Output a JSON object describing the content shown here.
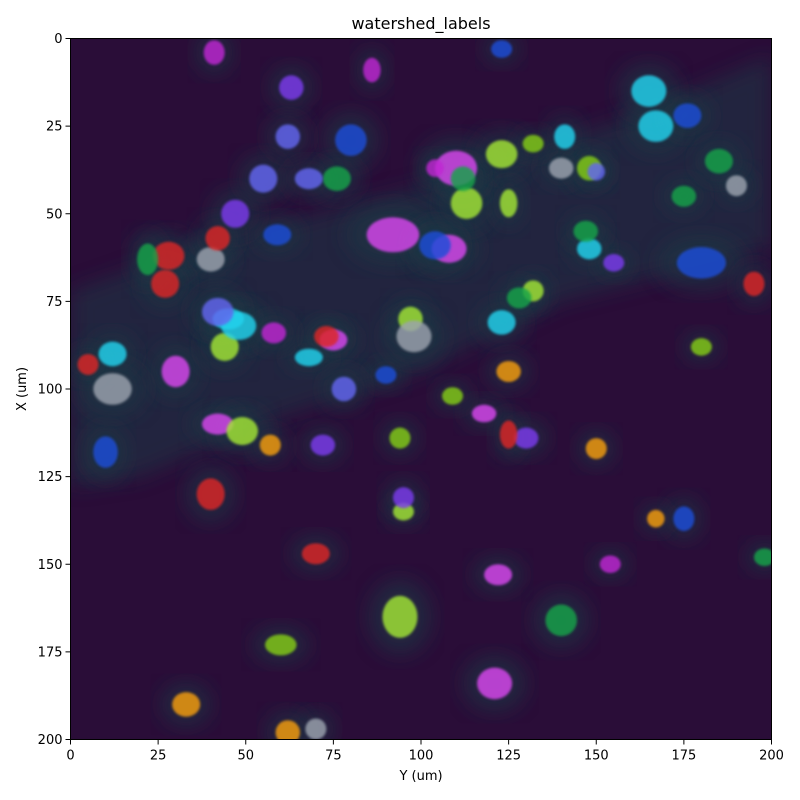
{
  "figure": {
    "title": "watershed_labels",
    "xlabel": "Y (um)",
    "ylabel": "X (um)"
  },
  "axes": {
    "x": {
      "range": [
        0,
        200
      ],
      "ticks": [
        0,
        25,
        50,
        75,
        100,
        125,
        150,
        175,
        200
      ]
    },
    "y": {
      "range": [
        0,
        200
      ],
      "ticks": [
        0,
        25,
        50,
        75,
        100,
        125,
        150,
        175,
        200
      ],
      "inverted": true
    }
  },
  "colors": {
    "background": "#2a0d38",
    "tissue_haze": "#1c3944",
    "label_palette": [
      "#d946ef",
      "#a3e635",
      "#22d3ee",
      "#1d4ed8",
      "#9ca3af",
      "#7c3aed",
      "#dc2626",
      "#16a34a",
      "#84cc16",
      "#f59e0b",
      "#6366f1",
      "#c026d3"
    ]
  },
  "cells": [
    {
      "y": 92,
      "x": 56,
      "w": 15,
      "h": 10,
      "c": 0
    },
    {
      "y": 118,
      "x": 107,
      "w": 7,
      "h": 5,
      "c": 0
    },
    {
      "y": 122,
      "x": 153,
      "w": 8,
      "h": 6,
      "c": 0
    },
    {
      "y": 30,
      "x": 95,
      "w": 8,
      "h": 9,
      "c": 0
    },
    {
      "y": 42,
      "x": 110,
      "w": 9,
      "h": 6,
      "c": 0
    },
    {
      "y": 110,
      "x": 37,
      "w": 12,
      "h": 10,
      "c": 0
    },
    {
      "y": 121,
      "x": 184,
      "w": 10,
      "h": 9,
      "c": 0
    },
    {
      "y": 108,
      "x": 60,
      "w": 10,
      "h": 8,
      "c": 0
    },
    {
      "y": 75,
      "x": 86,
      "w": 8,
      "h": 6,
      "c": 0
    },
    {
      "y": 94,
      "x": 165,
      "w": 10,
      "h": 12,
      "c": 1
    },
    {
      "y": 123,
      "x": 33,
      "w": 9,
      "h": 8,
      "c": 1
    },
    {
      "y": 113,
      "x": 47,
      "w": 9,
      "h": 9,
      "c": 1
    },
    {
      "y": 132,
      "x": 72,
      "w": 6,
      "h": 6,
      "c": 1
    },
    {
      "y": 49,
      "x": 112,
      "w": 9,
      "h": 8,
      "c": 1
    },
    {
      "y": 97,
      "x": 80,
      "w": 7,
      "h": 7,
      "c": 1
    },
    {
      "y": 95,
      "x": 135,
      "w": 6,
      "h": 5,
      "c": 1
    },
    {
      "y": 44,
      "x": 88,
      "w": 8,
      "h": 8,
      "c": 1
    },
    {
      "y": 125,
      "x": 47,
      "w": 5,
      "h": 8,
      "c": 1
    },
    {
      "y": 167,
      "x": 25,
      "w": 10,
      "h": 9,
      "c": 2
    },
    {
      "y": 68,
      "x": 91,
      "w": 8,
      "h": 5,
      "c": 2
    },
    {
      "y": 45,
      "x": 80,
      "w": 9,
      "h": 6,
      "c": 2
    },
    {
      "y": 12,
      "x": 90,
      "w": 8,
      "h": 7,
      "c": 2
    },
    {
      "y": 48,
      "x": 82,
      "w": 10,
      "h": 8,
      "c": 2
    },
    {
      "y": 148,
      "x": 60,
      "w": 7,
      "h": 6,
      "c": 2
    },
    {
      "y": 141,
      "x": 28,
      "w": 6,
      "h": 7,
      "c": 2
    },
    {
      "y": 165,
      "x": 15,
      "w": 10,
      "h": 9,
      "c": 2
    },
    {
      "y": 123,
      "x": 81,
      "w": 8,
      "h": 7,
      "c": 2
    },
    {
      "y": 80,
      "x": 29,
      "w": 9,
      "h": 9,
      "c": 3
    },
    {
      "y": 104,
      "x": 59,
      "w": 9,
      "h": 8,
      "c": 3
    },
    {
      "y": 10,
      "x": 118,
      "w": 7,
      "h": 9,
      "c": 3
    },
    {
      "y": 180,
      "x": 64,
      "w": 14,
      "h": 9,
      "c": 3
    },
    {
      "y": 175,
      "x": 137,
      "w": 6,
      "h": 7,
      "c": 3
    },
    {
      "y": 59,
      "x": 56,
      "w": 8,
      "h": 6,
      "c": 3
    },
    {
      "y": 123,
      "x": 3,
      "w": 6,
      "h": 5,
      "c": 3
    },
    {
      "y": 90,
      "x": 96,
      "w": 6,
      "h": 5,
      "c": 3
    },
    {
      "y": 176,
      "x": 22,
      "w": 8,
      "h": 7,
      "c": 3
    },
    {
      "y": 12,
      "x": 100,
      "w": 11,
      "h": 9,
      "c": 4
    },
    {
      "y": 98,
      "x": 85,
      "w": 10,
      "h": 9,
      "c": 4
    },
    {
      "y": 40,
      "x": 63,
      "w": 8,
      "h": 7,
      "c": 4
    },
    {
      "y": 140,
      "x": 37,
      "w": 7,
      "h": 6,
      "c": 4
    },
    {
      "y": 190,
      "x": 42,
      "w": 6,
      "h": 6,
      "c": 4
    },
    {
      "y": 70,
      "x": 197,
      "w": 6,
      "h": 6,
      "c": 4
    },
    {
      "y": 63,
      "x": 14,
      "w": 7,
      "h": 7,
      "c": 5
    },
    {
      "y": 95,
      "x": 131,
      "w": 6,
      "h": 6,
      "c": 5
    },
    {
      "y": 72,
      "x": 116,
      "w": 7,
      "h": 6,
      "c": 5
    },
    {
      "y": 130,
      "x": 114,
      "w": 7,
      "h": 6,
      "c": 5
    },
    {
      "y": 47,
      "x": 50,
      "w": 8,
      "h": 8,
      "c": 5
    },
    {
      "y": 155,
      "x": 64,
      "w": 6,
      "h": 5,
      "c": 5
    },
    {
      "y": 28,
      "x": 62,
      "w": 9,
      "h": 8,
      "c": 6
    },
    {
      "y": 70,
      "x": 147,
      "w": 8,
      "h": 6,
      "c": 6
    },
    {
      "y": 27,
      "x": 70,
      "w": 8,
      "h": 8,
      "c": 6
    },
    {
      "y": 42,
      "x": 57,
      "w": 7,
      "h": 7,
      "c": 6
    },
    {
      "y": 73,
      "x": 85,
      "w": 7,
      "h": 6,
      "c": 6
    },
    {
      "y": 5,
      "x": 93,
      "w": 6,
      "h": 6,
      "c": 6
    },
    {
      "y": 40,
      "x": 130,
      "w": 8,
      "h": 9,
      "c": 6
    },
    {
      "y": 125,
      "x": 113,
      "w": 5,
      "h": 8,
      "c": 6
    },
    {
      "y": 195,
      "x": 70,
      "w": 6,
      "h": 7,
      "c": 6
    },
    {
      "y": 175,
      "x": 45,
      "w": 7,
      "h": 6,
      "c": 7
    },
    {
      "y": 185,
      "x": 35,
      "w": 8,
      "h": 7,
      "c": 7
    },
    {
      "y": 22,
      "x": 63,
      "w": 6,
      "h": 9,
      "c": 7
    },
    {
      "y": 76,
      "x": 40,
      "w": 8,
      "h": 7,
      "c": 7
    },
    {
      "y": 112,
      "x": 40,
      "w": 7,
      "h": 7,
      "c": 7
    },
    {
      "y": 140,
      "x": 166,
      "w": 9,
      "h": 9,
      "c": 7
    },
    {
      "y": 128,
      "x": 74,
      "w": 7,
      "h": 6,
      "c": 7
    },
    {
      "y": 198,
      "x": 148,
      "w": 6,
      "h": 5,
      "c": 7
    },
    {
      "y": 147,
      "x": 55,
      "w": 7,
      "h": 6,
      "c": 7
    },
    {
      "y": 94,
      "x": 114,
      "w": 6,
      "h": 6,
      "c": 8
    },
    {
      "y": 180,
      "x": 88,
      "w": 6,
      "h": 5,
      "c": 8
    },
    {
      "y": 132,
      "x": 30,
      "w": 6,
      "h": 5,
      "c": 8
    },
    {
      "y": 60,
      "x": 173,
      "w": 9,
      "h": 6,
      "c": 8
    },
    {
      "y": 148,
      "x": 37,
      "w": 7,
      "h": 7,
      "c": 8
    },
    {
      "y": 109,
      "x": 102,
      "w": 6,
      "h": 5,
      "c": 8
    },
    {
      "y": 167,
      "x": 137,
      "w": 5,
      "h": 5,
      "c": 9
    },
    {
      "y": 57,
      "x": 116,
      "w": 6,
      "h": 6,
      "c": 9
    },
    {
      "y": 125,
      "x": 95,
      "w": 7,
      "h": 6,
      "c": 9
    },
    {
      "y": 150,
      "x": 117,
      "w": 6,
      "h": 6,
      "c": 9
    },
    {
      "y": 62,
      "x": 198,
      "w": 7,
      "h": 7,
      "c": 9
    },
    {
      "y": 33,
      "x": 190,
      "w": 8,
      "h": 7,
      "c": 9
    },
    {
      "y": 55,
      "x": 40,
      "w": 8,
      "h": 8,
      "c": 10
    },
    {
      "y": 42,
      "x": 78,
      "w": 9,
      "h": 8,
      "c": 10
    },
    {
      "y": 62,
      "x": 28,
      "w": 7,
      "h": 7,
      "c": 10
    },
    {
      "y": 150,
      "x": 38,
      "w": 5,
      "h": 5,
      "c": 10
    },
    {
      "y": 78,
      "x": 100,
      "w": 7,
      "h": 7,
      "c": 10
    },
    {
      "y": 68,
      "x": 40,
      "w": 8,
      "h": 6,
      "c": 10
    },
    {
      "y": 58,
      "x": 84,
      "w": 7,
      "h": 6,
      "c": 11
    },
    {
      "y": 86,
      "x": 9,
      "w": 5,
      "h": 7,
      "c": 11
    },
    {
      "y": 154,
      "x": 150,
      "w": 6,
      "h": 5,
      "c": 11
    },
    {
      "y": 41,
      "x": 4,
      "w": 6,
      "h": 7,
      "c": 11
    },
    {
      "y": 104,
      "x": 37,
      "w": 5,
      "h": 5,
      "c": 11
    }
  ]
}
